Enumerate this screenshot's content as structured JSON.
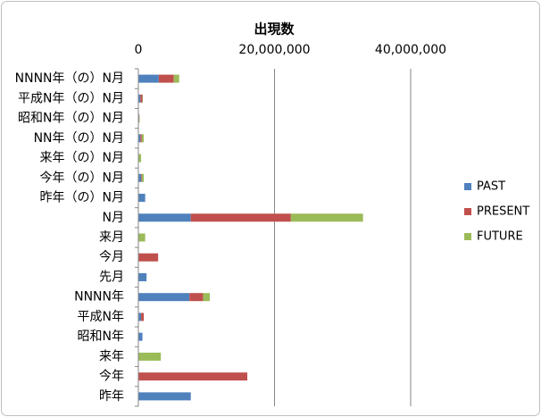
{
  "chart_data": {
    "type": "stacked-barh",
    "title": "出現数",
    "categories": [
      "NNNN年（の）N月",
      "平成N年（の）N月",
      "昭和N年（の）N月",
      "NN年（の）N月",
      "来年（の）N月",
      "今年（の）N月",
      "昨年（の）N月",
      "N月",
      "来月",
      "今月",
      "先月",
      "NNNN年",
      "平成N年",
      "昭和N年",
      "来年",
      "今年",
      "昨年"
    ],
    "series": [
      {
        "name": "PAST",
        "color": "#4f81bd",
        "values": [
          3000000,
          300000,
          100000,
          300000,
          0,
          400000,
          1000000,
          7700000,
          0,
          0,
          1200000,
          7500000,
          400000,
          600000,
          0,
          0,
          7700000
        ]
      },
      {
        "name": "PRESENT",
        "color": "#c0504d",
        "values": [
          2200000,
          300000,
          50000,
          200000,
          0,
          100000,
          0,
          14700000,
          0,
          2900000,
          0,
          2000000,
          400000,
          0,
          0,
          16000000,
          0
        ]
      },
      {
        "name": "FUTURE",
        "color": "#9bbb59",
        "values": [
          800000,
          50000,
          50000,
          300000,
          400000,
          300000,
          0,
          10600000,
          1000000,
          0,
          0,
          1000000,
          0,
          0,
          3300000,
          0,
          0
        ]
      }
    ],
    "xlim": [
      0,
      40000000
    ],
    "xticks": [
      0,
      {
        "value": 20000000,
        "label": "20,000,000"
      },
      {
        "value": 40000000,
        "label": "40,000,000"
      }
    ],
    "grid": true,
    "legend": "right"
  }
}
